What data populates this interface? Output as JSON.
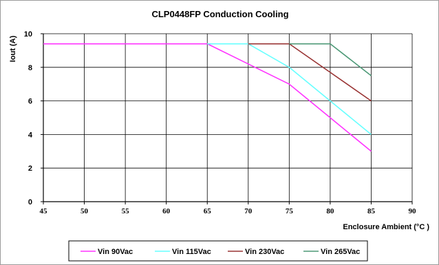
{
  "chart_data": {
    "type": "line",
    "title": "CLP0448FP Conduction Cooling",
    "xlabel": "Enclosure Ambient (°C )",
    "ylabel": "Iout (A)",
    "xlim": [
      45,
      90
    ],
    "ylim": [
      0,
      10
    ],
    "x_ticks": [
      45,
      50,
      55,
      60,
      65,
      70,
      75,
      80,
      85,
      90
    ],
    "y_ticks": [
      0,
      2,
      4,
      6,
      8,
      10
    ],
    "grid": true,
    "legend_position": "bottom",
    "series": [
      {
        "name": "Vin 90Vac",
        "color": "#ff33ff",
        "x": [
          45,
          65,
          70,
          75,
          80,
          85
        ],
        "y": [
          9.4,
          9.4,
          8.2,
          7.0,
          5.0,
          3.0
        ]
      },
      {
        "name": "Vin 115Vac",
        "color": "#66ffff",
        "x": [
          65,
          70,
          75,
          80,
          85
        ],
        "y": [
          9.4,
          9.4,
          8.0,
          6.0,
          4.0
        ]
      },
      {
        "name": "Vin 230Vac",
        "color": "#993333",
        "x": [
          70,
          75,
          80,
          85
        ],
        "y": [
          9.4,
          9.4,
          7.7,
          6.0
        ]
      },
      {
        "name": "Vin 265Vac",
        "color": "#4d9977",
        "x": [
          75,
          80,
          85
        ],
        "y": [
          9.4,
          9.4,
          7.5
        ]
      }
    ]
  }
}
